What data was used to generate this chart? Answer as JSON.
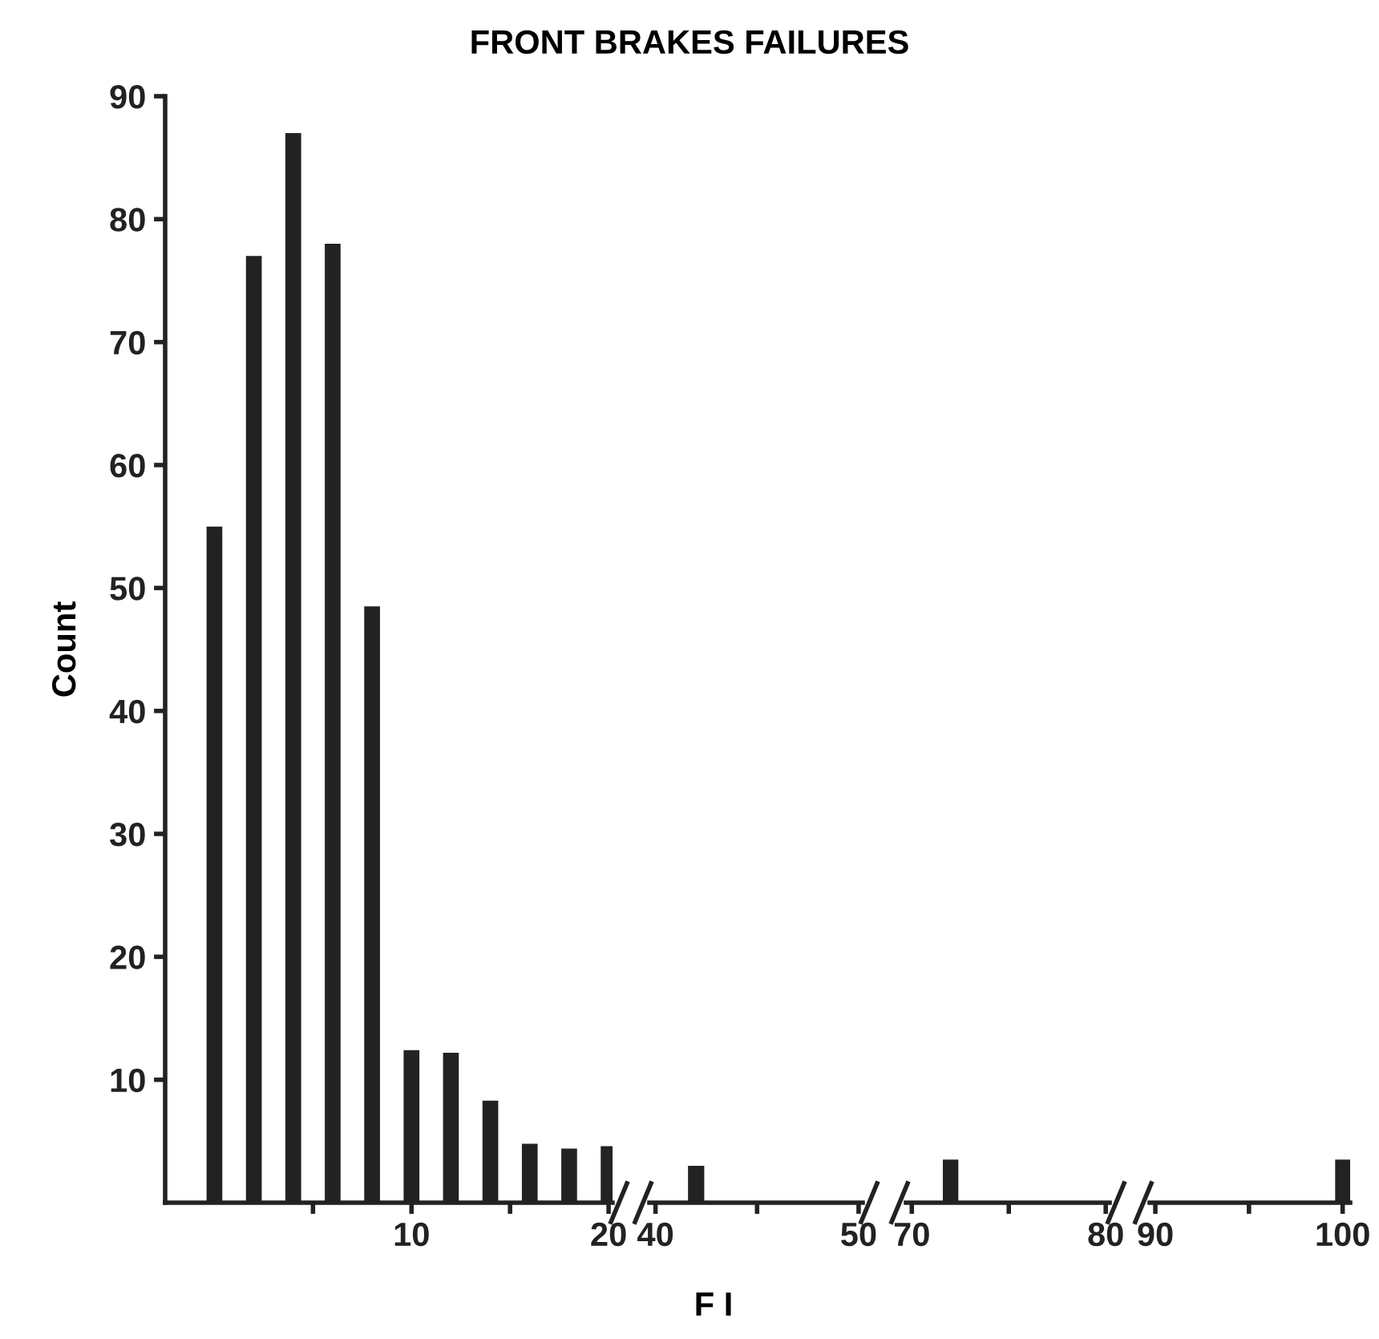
{
  "chart_data": [
    {
      "type": "bar",
      "title": "FRONT BRAKES FAILURES",
      "xlabel": "F I",
      "ylabel": "Count",
      "color": "#222222",
      "x": [
        0,
        2,
        4,
        6,
        8,
        10,
        12,
        14,
        16,
        18,
        20
      ],
      "values": [
        55,
        77,
        87,
        78,
        48.5,
        12.4,
        12.2,
        8.3,
        4.8,
        4.4,
        4.6
      ],
      "xlim": [
        -2.5,
        20.2
      ],
      "xticks": [
        {
          "value": 5,
          "label": null
        },
        10,
        {
          "value": 15,
          "label": null
        },
        20
      ],
      "ylim": [
        0,
        90
      ],
      "yticks": [
        10,
        20,
        30,
        40,
        50,
        60,
        70,
        80,
        90
      ],
      "grid": false
    },
    {
      "type": "bar",
      "color": "#222222",
      "x": [
        42
      ],
      "values": [
        3
      ],
      "xlim": [
        39.7,
        50.2
      ],
      "xticks": [
        40,
        {
          "value": 45,
          "label": null
        },
        50
      ],
      "ylim": [
        0,
        90
      ],
      "tick_labels": "x",
      "grid": false
    },
    {
      "type": "bar",
      "color": "#222222",
      "x": [
        72
      ],
      "values": [
        3.5
      ],
      "xlim": [
        69.7,
        80.2
      ],
      "xticks": [
        70,
        {
          "value": 75,
          "label": null
        },
        80
      ],
      "ylim": [
        0,
        90
      ],
      "tick_labels": "x",
      "grid": false
    },
    {
      "type": "bar",
      "color": "#222222",
      "x": [
        100
      ],
      "values": [
        3.5
      ],
      "xlim": [
        89.7,
        100.4
      ],
      "xticks": [
        90,
        {
          "value": 95,
          "label": null
        },
        100
      ],
      "ylim": [
        0,
        90
      ],
      "tick_labels": "x",
      "grid": false
    }
  ]
}
